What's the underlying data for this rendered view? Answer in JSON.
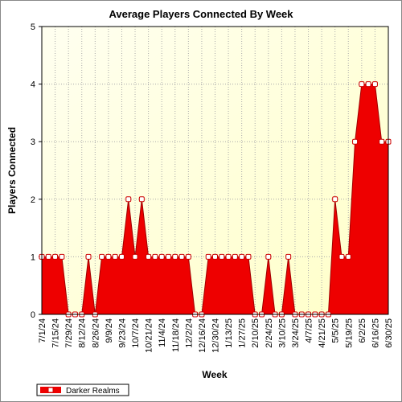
{
  "chart_data": {
    "type": "area",
    "title": "Average Players Connected By Week",
    "x_label": "Week",
    "y_label": "Players Connected",
    "categories": [
      "7/1/24",
      null,
      "7/15/24",
      null,
      "7/29/24",
      null,
      "8/12/24",
      null,
      "8/26/24",
      null,
      "9/9/24",
      null,
      "9/23/24",
      null,
      "10/7/24",
      null,
      "10/21/24",
      null,
      "11/4/24",
      null,
      "11/18/24",
      null,
      "12/2/24",
      null,
      "12/16/24",
      null,
      "12/30/24",
      null,
      "1/13/25",
      null,
      "1/27/25",
      null,
      "2/10/25",
      null,
      "2/24/25",
      null,
      "3/10/25",
      null,
      "3/24/25",
      null,
      "4/7/25",
      null,
      "4/21/25",
      null,
      "5/5/25",
      null,
      "5/19/25",
      null,
      "6/2/25",
      null,
      "6/16/25",
      null,
      "6/30/25"
    ],
    "series": [
      {
        "name": "Darker Realms",
        "color": "#ee0000",
        "values": [
          1,
          1,
          1,
          1,
          0,
          0,
          0,
          1,
          0,
          1,
          1,
          1,
          1,
          2,
          1,
          2,
          1,
          1,
          1,
          1,
          1,
          1,
          1,
          0,
          0,
          1,
          1,
          1,
          1,
          1,
          1,
          1,
          0,
          0,
          1,
          0,
          0,
          1,
          0,
          0,
          0,
          0,
          0,
          0,
          2,
          1,
          1,
          3,
          4,
          4,
          4,
          3,
          3
        ]
      }
    ],
    "ylim": [
      0,
      5
    ],
    "yticks": [
      0,
      1,
      2,
      3,
      4,
      5
    ],
    "grid": true,
    "legend": "bottom-left"
  }
}
